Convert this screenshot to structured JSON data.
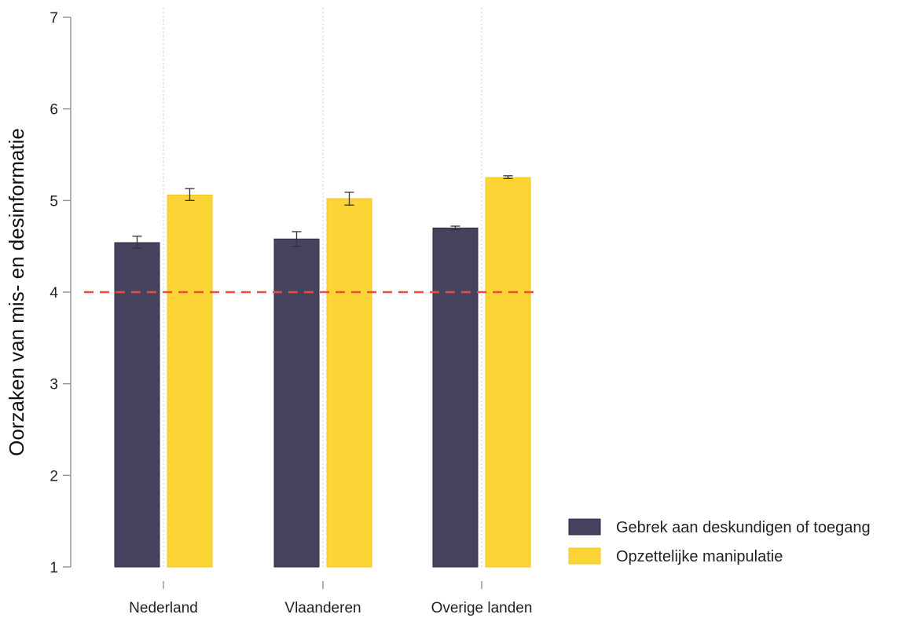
{
  "chart_data": {
    "type": "bar",
    "ylabel": "Oorzaken van mis- en desinformatie",
    "xlabel": "",
    "title": "",
    "categories": [
      "Nederland",
      "Vlaanderen",
      "Overige landen"
    ],
    "yticks": [
      1,
      2,
      3,
      4,
      5,
      6,
      7
    ],
    "ylim": [
      1,
      7
    ],
    "grid": "vertical dotted at categories",
    "legend_position": "bottom-right",
    "reference_line": {
      "y": 4,
      "style": "dashed",
      "color": "#f04a3c"
    },
    "series": [
      {
        "name": "Gebrek aan deskundigen of toegang",
        "color": "#45435e",
        "values": [
          4.54,
          4.58,
          4.7
        ],
        "error_low": [
          4.48,
          4.5,
          4.68
        ],
        "error_high": [
          4.61,
          4.66,
          4.72
        ]
      },
      {
        "name": "Opzettelijke manipulatie",
        "color": "#fdd435",
        "values": [
          5.06,
          5.02,
          5.25
        ],
        "error_low": [
          5.0,
          4.95,
          5.24
        ],
        "error_high": [
          5.13,
          5.09,
          5.27
        ]
      }
    ]
  }
}
